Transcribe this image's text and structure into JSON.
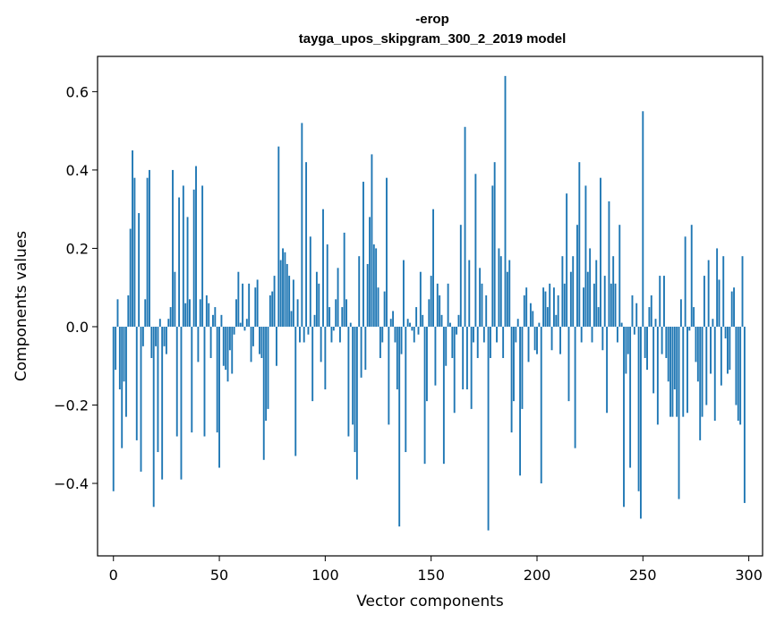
{
  "chart_data": {
    "type": "bar",
    "title_line1": "-erop",
    "title_line2": "tayga_upos_skipgram_300_2_2019 model",
    "xlabel": "Vector components",
    "ylabel": "Components values",
    "xlim": [
      -7.5,
      306.5
    ],
    "ylim": [
      -0.585,
      0.69
    ],
    "xticks": [
      0,
      50,
      100,
      150,
      200,
      250,
      300
    ],
    "xtick_labels": [
      "0",
      "50",
      "100",
      "150",
      "200",
      "250",
      "300"
    ],
    "yticks": [
      -0.4,
      -0.2,
      0.0,
      0.2,
      0.4,
      0.6
    ],
    "ytick_labels": [
      "−0.4",
      "−0.2",
      "0.0",
      "0.2",
      "0.4",
      "0.6"
    ],
    "bar_color": "#1f77b4",
    "values": [
      -0.42,
      -0.11,
      0.07,
      -0.16,
      -0.31,
      -0.14,
      -0.23,
      0.08,
      0.25,
      0.45,
      0.38,
      -0.29,
      0.29,
      -0.37,
      -0.05,
      0.07,
      0.38,
      0.4,
      -0.08,
      -0.46,
      -0.05,
      -0.32,
      0.02,
      -0.39,
      -0.05,
      -0.07,
      0.02,
      0.05,
      0.4,
      0.14,
      -0.28,
      0.33,
      -0.39,
      0.36,
      0.06,
      0.28,
      0.07,
      -0.27,
      0.35,
      0.41,
      -0.09,
      0.07,
      0.36,
      -0.28,
      0.08,
      0.06,
      -0.08,
      0.03,
      0.05,
      -0.27,
      -0.36,
      0.03,
      -0.1,
      -0.11,
      -0.14,
      -0.06,
      -0.12,
      -0.02,
      0.07,
      0.14,
      0.01,
      0.11,
      -0.01,
      0.02,
      0.11,
      -0.09,
      -0.05,
      0.1,
      0.12,
      -0.07,
      -0.08,
      -0.34,
      -0.24,
      -0.21,
      0.08,
      0.09,
      0.13,
      -0.1,
      0.46,
      0.17,
      0.2,
      0.19,
      0.16,
      0.13,
      0.04,
      0.12,
      -0.33,
      0.07,
      -0.04,
      0.52,
      -0.04,
      0.42,
      -0.02,
      0.23,
      -0.19,
      0.03,
      0.14,
      0.11,
      -0.09,
      0.3,
      -0.16,
      0.21,
      0.05,
      -0.04,
      -0.01,
      0.07,
      0.15,
      -0.04,
      0.05,
      0.24,
      0.07,
      -0.28,
      0.01,
      -0.25,
      -0.32,
      -0.39,
      0.18,
      -0.13,
      0.37,
      -0.11,
      0.16,
      0.28,
      0.44,
      0.21,
      0.2,
      0.1,
      -0.08,
      -0.04,
      0.09,
      0.38,
      -0.25,
      0.02,
      0.04,
      -0.04,
      -0.16,
      -0.51,
      -0.07,
      0.17,
      -0.32,
      0.02,
      0.01,
      -0.01,
      -0.04,
      0.05,
      -0.02,
      0.14,
      0.03,
      -0.35,
      -0.19,
      0.07,
      0.13,
      0.3,
      -0.15,
      0.11,
      0.08,
      0.03,
      -0.35,
      -0.1,
      0.11,
      0.01,
      -0.08,
      -0.22,
      -0.02,
      0.03,
      0.26,
      -0.16,
      0.51,
      -0.16,
      0.17,
      -0.21,
      -0.04,
      0.39,
      -0.08,
      0.15,
      0.11,
      -0.04,
      0.08,
      -0.52,
      -0.08,
      0.36,
      0.42,
      -0.04,
      0.2,
      0.18,
      -0.08,
      0.64,
      0.14,
      0.17,
      -0.27,
      -0.19,
      -0.04,
      0.02,
      -0.38,
      -0.21,
      0.08,
      0.1,
      -0.09,
      0.06,
      0.04,
      -0.06,
      -0.07,
      0.01,
      -0.4,
      0.1,
      0.09,
      0.05,
      0.11,
      -0.06,
      0.1,
      0.03,
      0.08,
      -0.07,
      0.18,
      0.11,
      0.34,
      -0.19,
      0.14,
      0.18,
      -0.31,
      0.26,
      0.42,
      -0.04,
      0.1,
      0.36,
      0.14,
      0.2,
      -0.04,
      0.11,
      0.17,
      0.05,
      0.38,
      -0.06,
      0.13,
      -0.22,
      0.32,
      0.11,
      0.18,
      0.11,
      -0.04,
      0.26,
      0.01,
      -0.46,
      -0.12,
      -0.07,
      -0.36,
      0.08,
      -0.02,
      0.06,
      -0.42,
      -0.49,
      0.55,
      -0.08,
      -0.11,
      0.05,
      0.08,
      -0.17,
      0.02,
      -0.25,
      0.13,
      -0.07,
      0.13,
      -0.08,
      -0.14,
      -0.23,
      -0.23,
      -0.16,
      -0.23,
      -0.44,
      0.07,
      -0.23,
      0.23,
      -0.22,
      -0.01,
      0.26,
      0.05,
      -0.09,
      -0.14,
      -0.29,
      -0.23,
      0.13,
      -0.2,
      0.17,
      -0.12,
      0.02,
      -0.24,
      0.2,
      0.12,
      -0.15,
      0.18,
      -0.03,
      -0.12,
      -0.11,
      0.09,
      0.1,
      -0.2,
      -0.24,
      -0.25,
      0.18,
      -0.45
    ]
  }
}
